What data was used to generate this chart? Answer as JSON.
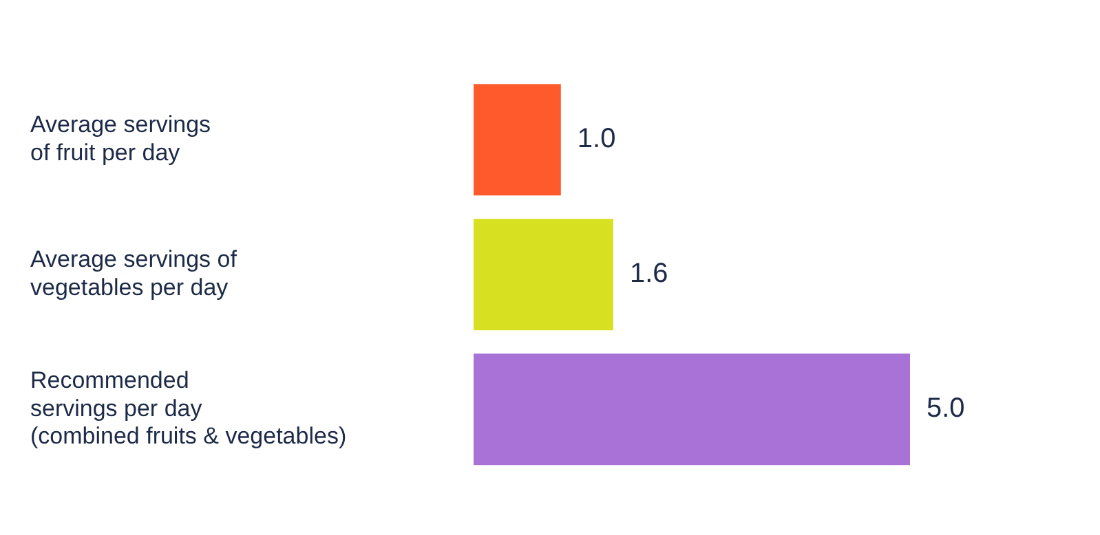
{
  "chart_data": {
    "type": "bar",
    "orientation": "horizontal",
    "categories": [
      "Average servings\nof fruit per day",
      "Average servings of\nvegetables per day",
      "Recommended\nservings per day\n(combined fruits & vegetables)"
    ],
    "values": [
      1.0,
      1.6,
      5.0
    ],
    "colors": [
      "#ff5a2c",
      "#d7e021",
      "#a872d6"
    ],
    "value_labels": [
      "1.0",
      "1.6",
      "5.0"
    ],
    "tick_labels": "y",
    "grid": false,
    "legend": false
  }
}
